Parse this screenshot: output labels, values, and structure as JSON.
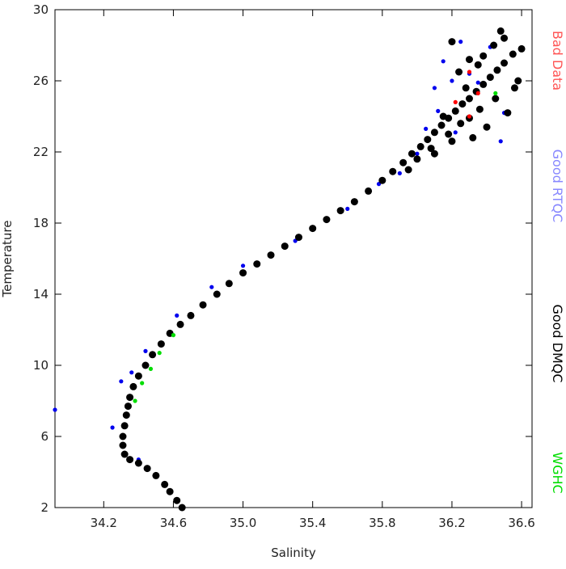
{
  "chart_data": {
    "type": "scatter",
    "x_label": "Salinity",
    "y_label": "Temperature",
    "xlim": [
      33.92,
      36.66
    ],
    "ylim": [
      2,
      30
    ],
    "xticks": [
      34.2,
      34.6,
      {
        "value": 35,
        "label": "35.0"
      },
      35.4,
      35.8,
      36.2,
      36.6
    ],
    "yticks": [
      2,
      6,
      10,
      14,
      18,
      22,
      26,
      30
    ],
    "series": [
      {
        "name": "Good RTQC",
        "color": "#0000ee",
        "x": [
          33.92,
          34.25,
          34.3,
          34.36,
          34.44,
          34.62,
          34.82,
          35.0,
          35.3,
          35.6,
          35.78,
          35.9,
          36.0,
          36.05,
          36.12,
          36.1,
          36.2,
          36.15,
          36.3,
          36.25,
          36.42,
          36.5,
          36.48,
          36.22,
          36.35,
          34.4
        ],
        "values": [
          7.5,
          6.5,
          9.1,
          9.6,
          10.8,
          12.8,
          14.4,
          15.6,
          17.0,
          18.8,
          20.2,
          20.8,
          21.9,
          23.3,
          24.3,
          25.6,
          26.0,
          27.1,
          26.4,
          28.2,
          27.9,
          24.2,
          22.6,
          23.1,
          25.9,
          4.7
        ]
      },
      {
        "name": "Good DMQC",
        "color": "#000000",
        "x": [
          34.65,
          34.62,
          34.58,
          34.55,
          34.5,
          34.45,
          34.4,
          34.35,
          34.32,
          34.31,
          34.31,
          34.32,
          34.33,
          34.34,
          34.35,
          34.37,
          34.4,
          34.44,
          34.48,
          34.53,
          34.58,
          34.64,
          34.7,
          34.77,
          34.85,
          34.92,
          35.0,
          35.08,
          35.16,
          35.24,
          35.32,
          35.4,
          35.48,
          35.56,
          35.64,
          35.72,
          35.8,
          35.86,
          35.92,
          35.97,
          36.02,
          36.06,
          36.1,
          36.14,
          36.18,
          36.22,
          36.26,
          36.3,
          36.34,
          36.38,
          36.42,
          36.46,
          36.5,
          36.55,
          36.6,
          36.58,
          36.5,
          36.44,
          36.38,
          36.3,
          36.24,
          36.2,
          36.28,
          36.36,
          36.45,
          36.52,
          36.4,
          36.32,
          36.2,
          36.08,
          36.0,
          35.95,
          36.15,
          36.25,
          36.35,
          36.48,
          36.56,
          36.3,
          36.18,
          36.1
        ],
        "values": [
          2.0,
          2.4,
          2.9,
          3.3,
          3.8,
          4.2,
          4.5,
          4.7,
          5.0,
          5.5,
          6.0,
          6.6,
          7.2,
          7.7,
          8.2,
          8.8,
          9.4,
          10.0,
          10.6,
          11.2,
          11.8,
          12.3,
          12.8,
          13.4,
          14.0,
          14.6,
          15.2,
          15.7,
          16.2,
          16.7,
          17.2,
          17.7,
          18.2,
          18.7,
          19.2,
          19.8,
          20.4,
          20.9,
          21.4,
          21.9,
          22.3,
          22.7,
          23.1,
          23.5,
          23.9,
          24.3,
          24.7,
          25.0,
          25.4,
          25.8,
          26.2,
          26.6,
          27.0,
          27.5,
          27.8,
          26.0,
          28.4,
          28.0,
          27.4,
          27.2,
          26.5,
          28.2,
          25.6,
          24.4,
          25.0,
          24.2,
          23.4,
          22.8,
          22.6,
          22.2,
          21.6,
          21.0,
          24.0,
          23.6,
          26.9,
          28.8,
          25.6,
          23.9,
          23.0,
          21.9
        ]
      },
      {
        "name": "Bad Data",
        "color": "#ff0000",
        "x": [
          36.3,
          36.35,
          36.22,
          36.3
        ],
        "values": [
          26.5,
          25.3,
          24.8,
          24.0
        ]
      },
      {
        "name": "WGHC",
        "color": "#00dd00",
        "x": [
          34.38,
          34.42,
          34.47,
          34.52,
          34.6,
          36.45
        ],
        "values": [
          8.0,
          9.0,
          9.8,
          10.7,
          11.7,
          25.3
        ]
      }
    ]
  }
}
